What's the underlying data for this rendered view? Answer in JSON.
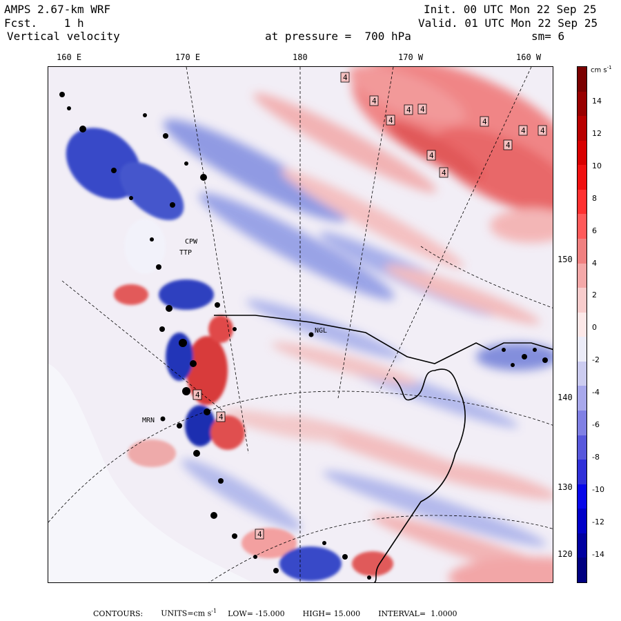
{
  "header": {
    "model": "AMPS 2.67-km WRF",
    "fcst": "Fcst.    1 h",
    "variable": "Vertical velocity",
    "init": "Init. 00 UTC Mon 22 Sep 25",
    "valid": "Valid. 01 UTC Mon 22 Sep 25",
    "level": "at pressure =  700 hPa",
    "smooth": "sm= 6"
  },
  "longitude_labels": [
    "160 E",
    "170 E",
    "180",
    "170 W",
    "160 W"
  ],
  "latitude_labels": [
    "150 W",
    "140 W",
    "130 W",
    "120 W"
  ],
  "station_labels": [
    "NGL",
    "CPW",
    "TTP",
    "MRN"
  ],
  "contour_marker": "4",
  "colorbar": {
    "units_base": "cm s",
    "units_exp": "-1",
    "ticks": [
      "14",
      "12",
      "10",
      "8",
      "6",
      "4",
      "2",
      "0",
      "-2",
      "-4",
      "-6",
      "-8",
      "-10",
      "-12",
      "-14"
    ],
    "colors_top_to_bottom": [
      "#7a0000",
      "#980000",
      "#b80000",
      "#d80000",
      "#f01010",
      "#ff3030",
      "#ff5a5a",
      "#f08080",
      "#f4a8a8",
      "#f8cccc",
      "#fce8e8",
      "#ececf8",
      "#ccccf0",
      "#a8a8ec",
      "#8080e4",
      "#5858dc",
      "#3030d8",
      "#0808e8",
      "#0000c8",
      "#0000a0",
      "#000080"
    ]
  },
  "footer": {
    "contours": "CONTOURS:",
    "units": "UNITS=cm s",
    "units_exp": "-1",
    "low": "LOW= -15.000",
    "high": "HIGH= 15.000",
    "interval": "INTERVAL=  1.0000"
  },
  "colors": {
    "positive": "#e05050",
    "negative": "#4f63d0",
    "neutral": "#f3f0f7"
  }
}
